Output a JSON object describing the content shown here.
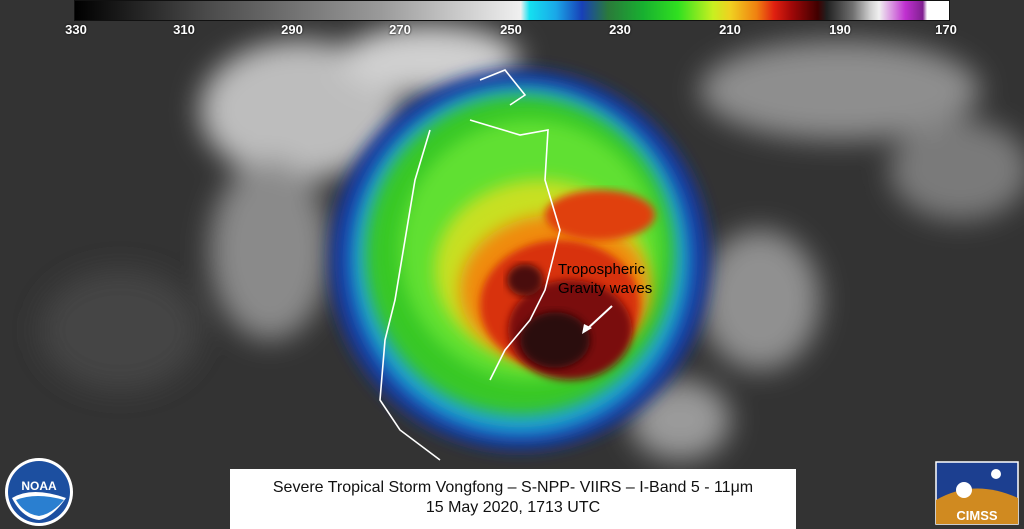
{
  "colorbar": {
    "ticks": [
      "330",
      "310",
      "290",
      "270",
      "250",
      "230",
      "210",
      "190",
      "170"
    ]
  },
  "annotation": {
    "line1": "Tropospheric",
    "line2": "Gravity waves"
  },
  "caption": {
    "line1": "Severe Tropical Storm Vongfong – S-NPP- VIIRS – I-Band 5 - 11μm",
    "line2": "15 May 2020, 1713 UTC"
  },
  "logos": {
    "left": "NOAA",
    "right": "CIMSS"
  },
  "colors": {
    "storm_core": "#5a0a0a",
    "storm_red": "#d83010",
    "storm_green": "#40d020",
    "storm_edge": "#1838a0",
    "coastline": "#ffffff"
  }
}
